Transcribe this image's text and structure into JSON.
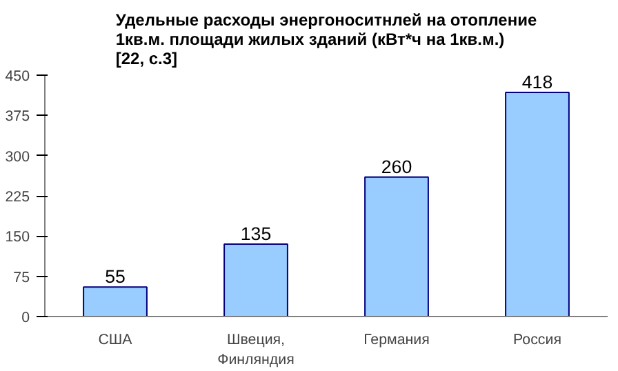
{
  "chart_data": {
    "type": "bar",
    "title": "Удельные расходы энергоноситнлей на отопление\n1кв.м. площади жилых зданий  (кВт*ч на 1кв.м.)\n[22, с.3]",
    "categories": [
      "США",
      "Швеция,\nФинляндия",
      "Германия",
      "Россия"
    ],
    "values": [
      55,
      135,
      260,
      418
    ],
    "color": "#99ccff",
    "ylim": [
      0,
      450
    ],
    "yticks": [
      0,
      75,
      150,
      225,
      300,
      375,
      450
    ],
    "grid": false,
    "data_labels": true
  }
}
